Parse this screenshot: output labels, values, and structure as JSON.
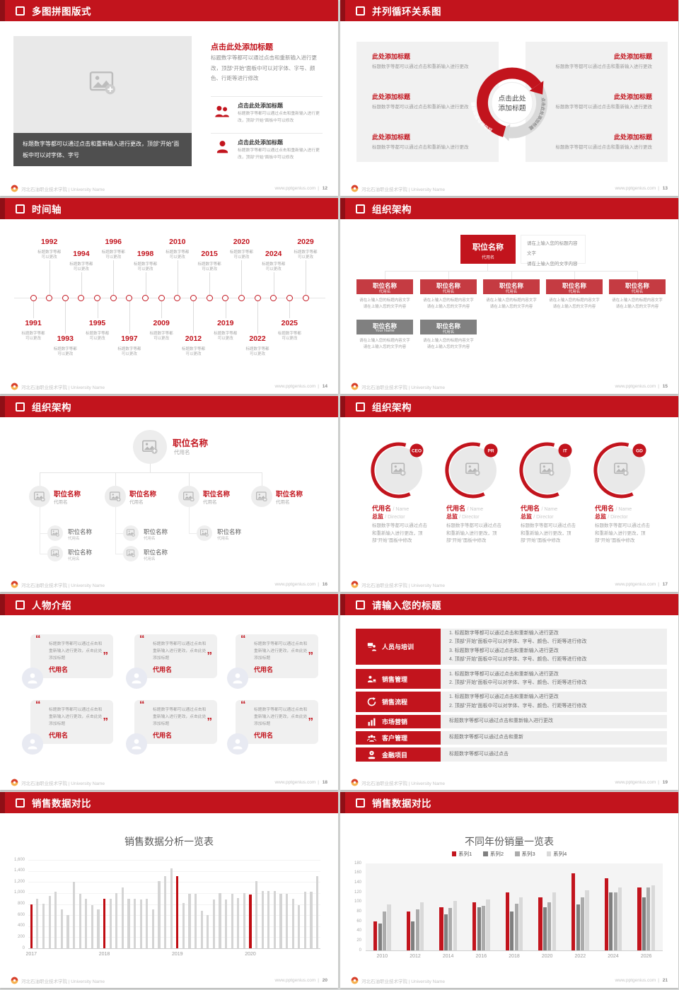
{
  "brand": {
    "accent": "#c2141d",
    "accent_dark": "#8f0f16"
  },
  "footer": {
    "school": "河北石油职业技术学院 | University Name",
    "site": "www.pptgenius.com",
    "sep": "|"
  },
  "slides": {
    "s12": {
      "title": "多图拼图版式",
      "page": "12",
      "caption": "标题数字等都可以通过点击和重新输入进行更改，顶部“开始”面板中可以对字体、字号",
      "right_title": "点击此处添加标题",
      "right_body": "标题数字等都可以通过点击和重新输入进行更改，顶部“开始”面板中可以对字体、字号、颜色、行距等进行修改",
      "items": [
        {
          "icon": "group-icon",
          "title": "点击此处添加标题",
          "text": "标题数字等都可以通过点击和重新输入进行更改，顶部“开始”面板中可以修改"
        },
        {
          "icon": "person-icon",
          "title": "点击此处添加标题",
          "text": "标题数字等都可以通过点击和重新输入进行更改，顶部“开始”面板中可以修改"
        }
      ]
    },
    "s13": {
      "title": "并列循环关系图",
      "page": "13",
      "center_line1": "点击此处",
      "center_line2": "添加标题",
      "arc_left": "点击此处添加标题",
      "arc_right": "点击此处添加标题",
      "left_items": [
        {
          "t": "此处添加标题",
          "x": "标题数字等都可以通过点击和重新输入进行更改"
        },
        {
          "t": "此处添加标题",
          "x": "标题数字等都可以通过点击和重新输入进行更改"
        },
        {
          "t": "此处添加标题",
          "x": "标题数字等都可以通过点击和重新输入进行更改"
        }
      ],
      "right_items": [
        {
          "t": "此处添加标题",
          "x": "标题数字等都可以通过点击和重新输入进行更改"
        },
        {
          "t": "此处添加标题",
          "x": "标题数字等都可以通过点击和重新输入进行更改"
        },
        {
          "t": "此处添加标题",
          "x": "标题数字等都可以通过点击和重新输入进行更改"
        }
      ]
    },
    "s14": {
      "title": "时间轴",
      "page": "14",
      "item_lines": [
        "标题数字等都",
        "可以更改"
      ],
      "items": [
        {
          "year": "1991",
          "side": "down",
          "level": 1
        },
        {
          "year": "1992",
          "side": "up",
          "level": 2
        },
        {
          "year": "1993",
          "side": "down",
          "level": 2
        },
        {
          "year": "1994",
          "side": "up",
          "level": 1
        },
        {
          "year": "1995",
          "side": "down",
          "level": 1
        },
        {
          "year": "1996",
          "side": "up",
          "level": 2
        },
        {
          "year": "1997",
          "side": "down",
          "level": 2
        },
        {
          "year": "1998",
          "side": "up",
          "level": 1
        },
        {
          "year": "2009",
          "side": "down",
          "level": 1
        },
        {
          "year": "2010",
          "side": "up",
          "level": 2
        },
        {
          "year": "2012",
          "side": "down",
          "level": 2
        },
        {
          "year": "2015",
          "side": "up",
          "level": 1
        },
        {
          "year": "2019",
          "side": "down",
          "level": 1
        },
        {
          "year": "2020",
          "side": "up",
          "level": 2
        },
        {
          "year": "2022",
          "side": "down",
          "level": 2
        },
        {
          "year": "2024",
          "side": "up",
          "level": 1
        },
        {
          "year": "2025",
          "side": "down",
          "level": 1
        },
        {
          "year": "2029",
          "side": "up",
          "level": 2
        }
      ]
    },
    "s15": {
      "title": "组织架构",
      "page": "15",
      "root": {
        "title": "职位名称",
        "sub": "代用名"
      },
      "note_lines": [
        "请在上输入您的标题内容文字",
        "请在上输入您的文字内容"
      ],
      "body_lines": [
        "请在上输入您的标题内容文字",
        "请在上输入您的文字内容"
      ],
      "red_boxes": [
        {
          "title": "职位名称",
          "sub": "代用名"
        },
        {
          "title": "职位名称",
          "sub": "代用名"
        },
        {
          "title": "职位名称",
          "sub": "代用名"
        },
        {
          "title": "职位名称",
          "sub": "代用名"
        },
        {
          "title": "职位名称",
          "sub": "代用名"
        }
      ],
      "gray_boxes": [
        {
          "title": "职位名称",
          "sub": "Your Name"
        },
        {
          "title": "职位名称",
          "sub": "代用名"
        }
      ]
    },
    "s16": {
      "title": "组织架构",
      "page": "16",
      "root": {
        "title": "职位名称",
        "sub": "代用名"
      },
      "branches": [
        {
          "title": "职位名称",
          "sub": "代用名",
          "children": [
            {
              "title": "职位名称",
              "sub": "代用名"
            },
            {
              "title": "职位名称",
              "sub": "代用名"
            }
          ]
        },
        {
          "title": "职位名称",
          "sub": "代用名",
          "children": [
            {
              "title": "职位名称",
              "sub": "代用名"
            },
            {
              "title": "职位名称",
              "sub": "代用名"
            }
          ]
        },
        {
          "title": "职位名称",
          "sub": "代用名",
          "children": [
            {
              "title": "职位名称",
              "sub": "代用名"
            }
          ]
        },
        {
          "title": "职位名称",
          "sub": "代用名",
          "children": []
        }
      ]
    },
    "s17": {
      "title": "组织架构",
      "page": "17",
      "people": [
        {
          "badge": "CEO",
          "name": "代用名",
          "name_en": "/ Name",
          "role": "总监",
          "role_en": "/ Director",
          "text": "标题数字等都可以通过点击和重新输入进行更改，顶部“开始”面板中修改"
        },
        {
          "badge": "PR",
          "name": "代用名",
          "name_en": "/ Name",
          "role": "总监",
          "role_en": "/ Director",
          "text": "标题数字等都可以通过点击和重新输入进行更改，顶部“开始”面板中修改"
        },
        {
          "badge": "IT",
          "name": "代用名",
          "name_en": "/ Name",
          "role": "总监",
          "role_en": "/ Director",
          "text": "标题数字等都可以通过点击和重新输入进行更改，顶部“开始”面板中修改"
        },
        {
          "badge": "GD",
          "name": "代用名",
          "name_en": "/ Name",
          "role": "总监",
          "role_en": "/ Director",
          "text": "标题数字等都可以通过点击和重新输入进行更改，顶部“开始”面板中修改"
        }
      ]
    },
    "s18": {
      "title": "人物介绍",
      "page": "18",
      "cards": [
        {
          "text": "标题数字等都可以通过点击和重新输入进行更改，点击此处添加标题",
          "name": "代用名"
        },
        {
          "text": "标题数字等都可以通过点击和重新输入进行更改，点击此处添加标题",
          "name": "代用名"
        },
        {
          "text": "标题数字等都可以通过点击和重新输入进行更改，点击此处添加标题",
          "name": "代用名"
        },
        {
          "text": "标题数字等都可以通过点击和重新输入进行更改，点击此处添加标题",
          "name": "代用名"
        },
        {
          "text": "标题数字等都可以通过点击和重新输入进行更改，点击此处添加标题",
          "name": "代用名"
        },
        {
          "text": "标题数字等都可以通过点击和重新输入进行更改，点击此处添加标题",
          "name": "代用名"
        }
      ]
    },
    "s19": {
      "title": "请输入您的标题",
      "page": "19",
      "rows": [
        {
          "icon": "training-icon",
          "label": "人员与培训",
          "lines": [
            "1.  标题数字等都可以通过点击和重新输入进行更改",
            "2.  顶部“开始”面板中可以对字体、字号、颜色、行距等进行修改",
            "3.  标题数字等都可以通过点击和重新输入进行更改",
            "4.  顶部“开始”面板中可以对字体、字号、颜色、行距等进行修改"
          ]
        },
        {
          "icon": "sales-icon",
          "label": "销售管理",
          "lines": [
            "1.  标题数字等都可以通过点击和重新输入进行更改",
            "2.  顶部“开始”面板中可以对字体、字号、颜色、行距等进行修改"
          ]
        },
        {
          "icon": "process-icon",
          "label": "销售流程",
          "lines": [
            "1.  标题数字等都可以通过点击和重新输入进行更改",
            "2.  顶部“开始”面板中可以对字体、字号、颜色、行距等进行修改"
          ]
        },
        {
          "icon": "chart-icon",
          "label": "市场营销",
          "lines": [
            "标题数字等都可以通过点击和重新输入进行更改"
          ]
        },
        {
          "icon": "customers-icon",
          "label": "客户管理",
          "lines": [
            "标题数字等都可以通过点击和重新"
          ]
        },
        {
          "icon": "finance-icon",
          "label": "金融项目",
          "lines": [
            "标题数字等都可以通过点击"
          ]
        }
      ]
    },
    "s20": {
      "title": "销售数据对比",
      "page": "20"
    },
    "s21": {
      "title": "销售数据对比",
      "page": "21"
    }
  },
  "chart_data": [
    {
      "type": "bar",
      "title": "销售数据分析一览表",
      "x_groups": [
        "2017",
        "2018",
        "2019",
        "2020"
      ],
      "group_size": 12,
      "values": [
        800,
        900,
        810,
        950,
        1030,
        710,
        600,
        1200,
        990,
        900,
        780,
        700,
        890,
        900,
        1000,
        1100,
        900,
        900,
        880,
        890,
        700,
        1210,
        1300,
        1450,
        1300,
        820,
        980,
        980,
        680,
        600,
        880,
        1000,
        880,
        980,
        915,
        1000,
        970,
        1210,
        1040,
        1040,
        1040,
        990,
        990,
        900,
        780,
        1030,
        1030,
        1300
      ],
      "highlight_indices": [
        0,
        12,
        24,
        36
      ],
      "ylim": [
        0,
        1600
      ],
      "ytick_step": 200,
      "grid": true,
      "legend": false,
      "bar_color": "#d4d4d4",
      "accent_color": "#c00c12"
    },
    {
      "type": "bar",
      "title": "不同年份销量一览表",
      "categories": [
        "2010",
        "2012",
        "2014",
        "2016",
        "2018",
        "2020",
        "2022",
        "2024",
        "2026"
      ],
      "series": [
        {
          "name": "系列1",
          "color": "#c2141d",
          "values": [
            60,
            80,
            90,
            100,
            120,
            110,
            160,
            150,
            130
          ]
        },
        {
          "name": "系列2",
          "color": "#7f7f7f",
          "values": [
            55,
            60,
            75,
            90,
            80,
            90,
            95,
            120,
            110
          ]
        },
        {
          "name": "系列3",
          "color": "#ababab",
          "values": [
            80,
            85,
            88,
            92,
            97,
            100,
            110,
            120,
            130
          ]
        },
        {
          "name": "系列4",
          "color": "#d9d9d9",
          "values": [
            95,
            100,
            102,
            105,
            110,
            120,
            125,
            130,
            135
          ]
        }
      ],
      "ylim": [
        0,
        180
      ],
      "ytick_step": 20,
      "grid": false,
      "legend_position": "top"
    }
  ]
}
